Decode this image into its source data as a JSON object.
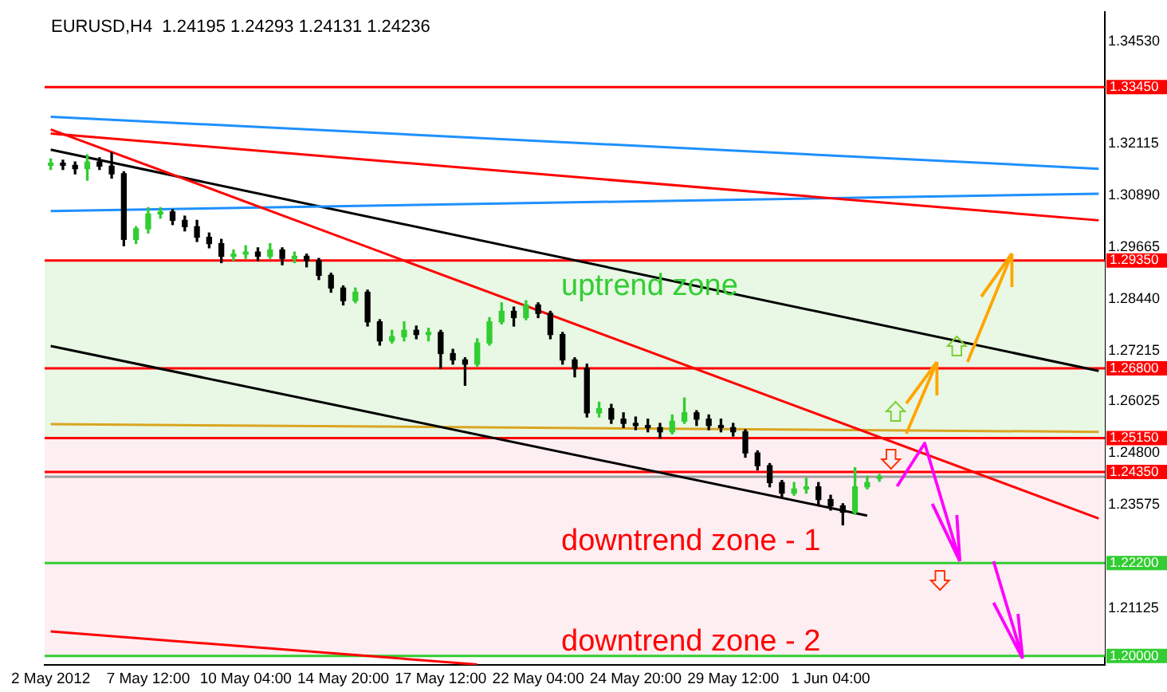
{
  "chart_data": {
    "type": "candlestick",
    "title": "EURUSD,H4  1.24195 1.24293 1.24131 1.24236",
    "categories": [
      "2 May 2012",
      null,
      null,
      null,
      null,
      null,
      null,
      null,
      "7 May 12:00",
      null,
      null,
      null,
      null,
      null,
      null,
      null,
      "10 May 04:00",
      null,
      null,
      null,
      null,
      null,
      null,
      null,
      "14 May 20:00",
      null,
      null,
      null,
      null,
      null,
      null,
      null,
      "17 May 12:00",
      null,
      null,
      null,
      null,
      null,
      null,
      null,
      "22 May 04:00",
      null,
      null,
      null,
      null,
      null,
      null,
      null,
      "24 May 20:00",
      null,
      null,
      null,
      null,
      null,
      null,
      null,
      "29 May 12:00",
      null,
      null,
      null,
      null,
      null,
      null,
      null,
      "1 Jun 04:00",
      null,
      null,
      null,
      null,
      null,
      null,
      null,
      null,
      null,
      null,
      null,
      null,
      null,
      null,
      null,
      null,
      null,
      null,
      null,
      null,
      null,
      null
    ],
    "ohlc": [
      [
        1.316,
        1.3175,
        1.315,
        1.3165
      ],
      [
        1.3165,
        1.3172,
        1.315,
        1.316
      ],
      [
        1.316,
        1.3168,
        1.314,
        1.3152
      ],
      [
        1.3152,
        1.3185,
        1.3125,
        1.3168
      ],
      [
        1.3168,
        1.3178,
        1.315,
        1.3158
      ],
      [
        1.3158,
        1.319,
        1.313,
        1.314
      ],
      [
        1.314,
        1.3145,
        1.297,
        1.2985
      ],
      [
        1.2985,
        1.3015,
        1.2975,
        1.301
      ],
      [
        1.301,
        1.306,
        1.3,
        1.3045
      ],
      [
        1.3045,
        1.306,
        1.3035,
        1.305
      ],
      [
        1.305,
        1.3055,
        1.302,
        1.303
      ],
      [
        1.303,
        1.304,
        1.3005,
        1.3015
      ],
      [
        1.3015,
        1.303,
        1.298,
        1.299
      ],
      [
        1.299,
        1.3,
        1.2965,
        1.2975
      ],
      [
        1.2975,
        1.2985,
        1.293,
        1.2945
      ],
      [
        1.2945,
        1.296,
        1.2935,
        1.295
      ],
      [
        1.295,
        1.297,
        1.294,
        1.2955
      ],
      [
        1.2955,
        1.2965,
        1.2935,
        1.2945
      ],
      [
        1.2945,
        1.2975,
        1.294,
        1.296
      ],
      [
        1.296,
        1.2965,
        1.2925,
        1.294
      ],
      [
        1.294,
        1.2955,
        1.293,
        1.2945
      ],
      [
        1.2945,
        1.295,
        1.292,
        1.2935
      ],
      [
        1.2935,
        1.294,
        1.289,
        1.29
      ],
      [
        1.29,
        1.2905,
        1.286,
        1.287
      ],
      [
        1.287,
        1.2875,
        1.283,
        1.284
      ],
      [
        1.284,
        1.287,
        1.2835,
        1.286
      ],
      [
        1.286,
        1.2865,
        1.278,
        1.279
      ],
      [
        1.279,
        1.2795,
        1.2735,
        1.2745
      ],
      [
        1.2745,
        1.277,
        1.274,
        1.2755
      ],
      [
        1.2755,
        1.279,
        1.2745,
        1.277
      ],
      [
        1.277,
        1.278,
        1.275,
        1.276
      ],
      [
        1.276,
        1.2775,
        1.2745,
        1.2765
      ],
      [
        1.2765,
        1.277,
        1.268,
        1.2715
      ],
      [
        1.2715,
        1.2725,
        1.269,
        1.27
      ],
      [
        1.27,
        1.2705,
        1.264,
        1.269
      ],
      [
        1.269,
        1.275,
        1.2685,
        1.274
      ],
      [
        1.274,
        1.28,
        1.2735,
        1.279
      ],
      [
        1.279,
        1.2835,
        1.2785,
        1.2815
      ],
      [
        1.2815,
        1.2825,
        1.278,
        1.28
      ],
      [
        1.28,
        1.284,
        1.2795,
        1.283
      ],
      [
        1.283,
        1.2835,
        1.28,
        1.281
      ],
      [
        1.281,
        1.2815,
        1.275,
        1.276
      ],
      [
        1.276,
        1.2765,
        1.269,
        1.27
      ],
      [
        1.27,
        1.2705,
        1.266,
        1.268
      ],
      [
        1.268,
        1.269,
        1.2565,
        1.2575
      ],
      [
        1.2575,
        1.26,
        1.2565,
        1.2585
      ],
      [
        1.2585,
        1.2595,
        1.255,
        1.256
      ],
      [
        1.256,
        1.2575,
        1.254,
        1.255
      ],
      [
        1.255,
        1.2565,
        1.2535,
        1.2545
      ],
      [
        1.2545,
        1.256,
        1.253,
        1.254
      ],
      [
        1.254,
        1.255,
        1.2515,
        1.253
      ],
      [
        1.253,
        1.257,
        1.2525,
        1.2555
      ],
      [
        1.2555,
        1.261,
        1.255,
        1.2575
      ],
      [
        1.2575,
        1.258,
        1.2545,
        1.256
      ],
      [
        1.256,
        1.257,
        1.2535,
        1.2545
      ],
      [
        1.2545,
        1.256,
        1.253,
        1.254
      ],
      [
        1.254,
        1.255,
        1.252,
        1.253
      ],
      [
        1.253,
        1.2535,
        1.247,
        1.248
      ],
      [
        1.248,
        1.2485,
        1.244,
        1.245
      ],
      [
        1.245,
        1.2455,
        1.24,
        1.241
      ],
      [
        1.241,
        1.2415,
        1.2375,
        1.2385
      ],
      [
        1.2385,
        1.241,
        1.238,
        1.2395
      ],
      [
        1.2395,
        1.242,
        1.2385,
        1.24
      ],
      [
        1.24,
        1.241,
        1.2355,
        1.237
      ],
      [
        1.237,
        1.238,
        1.2345,
        1.2355
      ],
      [
        1.2355,
        1.236,
        1.231,
        1.234
      ],
      [
        1.234,
        1.2445,
        1.2335,
        1.24
      ],
      [
        1.24,
        1.2425,
        1.2395,
        1.241
      ],
      [
        1.24195,
        1.24293,
        1.24131,
        1.24236
      ],
      null,
      null,
      null,
      null,
      null,
      null,
      null,
      null,
      null,
      null,
      null,
      null,
      null,
      null,
      null,
      null,
      null,
      null
    ],
    "series": [
      {
        "type": "line",
        "color": "#ff0000",
        "values": [
          1.3245,
          null,
          null,
          null,
          null,
          null,
          null,
          null,
          null,
          null,
          null,
          null,
          null,
          null,
          null,
          null,
          null,
          null,
          null,
          null,
          null,
          null,
          null,
          null,
          null,
          null,
          null,
          null,
          null,
          null,
          null,
          null,
          null,
          null,
          null,
          null,
          null,
          null,
          null,
          null,
          null,
          null,
          null,
          null,
          null,
          null,
          null,
          null,
          null,
          null,
          null,
          null,
          null,
          null,
          null,
          null,
          null,
          null,
          null,
          null,
          null,
          null,
          null,
          null,
          null,
          null,
          null,
          null,
          null,
          null,
          null,
          null,
          null,
          null,
          null,
          null,
          null,
          null,
          null,
          null,
          null,
          null,
          null,
          null,
          null,
          null,
          1.2325
        ]
      },
      {
        "type": "line",
        "color": "#ff0000",
        "values": [
          1.3235,
          null,
          null,
          null,
          null,
          null,
          null,
          null,
          null,
          null,
          null,
          null,
          null,
          null,
          null,
          null,
          null,
          null,
          null,
          null,
          null,
          null,
          null,
          null,
          null,
          null,
          null,
          null,
          null,
          null,
          null,
          null,
          null,
          null,
          null,
          null,
          null,
          null,
          null,
          null,
          null,
          null,
          null,
          null,
          null,
          null,
          null,
          null,
          null,
          null,
          null,
          null,
          null,
          null,
          null,
          null,
          null,
          null,
          null,
          null,
          null,
          null,
          null,
          null,
          null,
          null,
          null,
          null,
          null,
          null,
          null,
          null,
          null,
          null,
          null,
          null,
          null,
          null,
          null,
          null,
          null,
          null,
          null,
          null,
          null,
          null,
          1.303
        ]
      },
      {
        "type": "line",
        "color": "#1e90ff",
        "values": [
          1.3275,
          null,
          null,
          null,
          null,
          null,
          null,
          null,
          null,
          null,
          null,
          null,
          null,
          null,
          null,
          null,
          null,
          null,
          null,
          null,
          null,
          null,
          null,
          null,
          null,
          null,
          null,
          null,
          null,
          null,
          null,
          null,
          null,
          null,
          null,
          null,
          null,
          null,
          null,
          null,
          null,
          null,
          null,
          null,
          null,
          null,
          null,
          null,
          null,
          null,
          null,
          null,
          null,
          null,
          null,
          null,
          null,
          null,
          null,
          null,
          null,
          null,
          null,
          null,
          null,
          null,
          null,
          null,
          null,
          null,
          null,
          null,
          null,
          null,
          null,
          null,
          null,
          null,
          null,
          null,
          null,
          null,
          null,
          null,
          null,
          null,
          1.3152
        ]
      },
      {
        "type": "line",
        "color": "#1e90ff",
        "values": [
          1.3052,
          null,
          null,
          null,
          null,
          null,
          null,
          null,
          null,
          null,
          null,
          null,
          null,
          null,
          null,
          null,
          null,
          null,
          null,
          null,
          null,
          null,
          null,
          null,
          null,
          null,
          null,
          null,
          null,
          null,
          null,
          null,
          null,
          null,
          null,
          null,
          null,
          null,
          null,
          null,
          null,
          null,
          null,
          null,
          null,
          null,
          null,
          null,
          null,
          null,
          null,
          null,
          null,
          null,
          null,
          null,
          null,
          null,
          null,
          null,
          null,
          null,
          null,
          null,
          null,
          null,
          null,
          null,
          null,
          null,
          null,
          null,
          null,
          null,
          null,
          null,
          null,
          null,
          null,
          null,
          null,
          null,
          null,
          null,
          null,
          null,
          1.3093
        ]
      },
      {
        "type": "line",
        "color": "#000000",
        "values": [
          1.3197,
          null,
          null,
          null,
          null,
          null,
          null,
          null,
          null,
          null,
          null,
          null,
          null,
          null,
          null,
          null,
          null,
          null,
          null,
          null,
          null,
          null,
          null,
          null,
          null,
          null,
          null,
          null,
          null,
          null,
          null,
          null,
          null,
          null,
          null,
          null,
          null,
          null,
          null,
          null,
          null,
          null,
          null,
          null,
          null,
          null,
          null,
          null,
          null,
          null,
          null,
          null,
          null,
          null,
          null,
          null,
          null,
          null,
          null,
          null,
          null,
          null,
          null,
          null,
          null,
          null,
          null,
          null,
          null,
          null,
          null,
          null,
          null,
          null,
          null,
          null,
          null,
          null,
          null,
          null,
          null,
          null,
          null,
          null,
          null,
          null,
          1.2674
        ]
      },
      {
        "type": "line",
        "color": "#000000",
        "values": [
          1.2733,
          null,
          null,
          null,
          null,
          null,
          null,
          null,
          null,
          null,
          null,
          null,
          null,
          null,
          null,
          null,
          null,
          null,
          null,
          null,
          null,
          null,
          null,
          null,
          null,
          null,
          null,
          null,
          null,
          null,
          null,
          null,
          null,
          null,
          null,
          null,
          null,
          null,
          null,
          null,
          null,
          null,
          null,
          null,
          null,
          null,
          null,
          null,
          null,
          null,
          null,
          null,
          null,
          null,
          null,
          null,
          null,
          null,
          null,
          null,
          null,
          null,
          null,
          null,
          null,
          null,
          null,
          1.2332,
          null,
          null,
          null,
          null,
          null,
          null,
          null,
          null,
          null,
          null,
          null,
          null,
          null,
          null,
          null,
          null,
          null,
          null,
          null
        ]
      },
      {
        "type": "line",
        "color": "#daa520",
        "values": [
          1.2548,
          null,
          null,
          null,
          null,
          null,
          null,
          null,
          null,
          null,
          null,
          null,
          null,
          null,
          null,
          null,
          null,
          null,
          null,
          null,
          null,
          null,
          null,
          null,
          null,
          null,
          null,
          null,
          null,
          null,
          null,
          null,
          null,
          null,
          null,
          null,
          null,
          null,
          null,
          null,
          null,
          null,
          null,
          null,
          null,
          null,
          null,
          null,
          null,
          null,
          null,
          null,
          null,
          null,
          null,
          null,
          null,
          null,
          null,
          null,
          null,
          null,
          null,
          null,
          null,
          null,
          null,
          null,
          null,
          null,
          null,
          null,
          null,
          null,
          null,
          null,
          null,
          null,
          null,
          null,
          null,
          null,
          null,
          null,
          null,
          null,
          1.253
        ]
      },
      {
        "type": "line",
        "color": "#ff0000",
        "values": [
          1.2058,
          null,
          null,
          null,
          null,
          null,
          null,
          null,
          null,
          null,
          null,
          null,
          null,
          null,
          null,
          null,
          null,
          null,
          null,
          null,
          null,
          null,
          null,
          null,
          null,
          null,
          null,
          null,
          null,
          null,
          null,
          null,
          null,
          null,
          null,
          1.198,
          null,
          null,
          null,
          null,
          null,
          null,
          null,
          null,
          null,
          null,
          null,
          null,
          null,
          null,
          null,
          null,
          null,
          null,
          null,
          null,
          null,
          null,
          null,
          null,
          null,
          null,
          null,
          null,
          null,
          null,
          null,
          null,
          null,
          null,
          null,
          null,
          null,
          null,
          null,
          null,
          null,
          null,
          null,
          null,
          null,
          null,
          null,
          null,
          null,
          null,
          null
        ]
      }
    ],
    "ylim": [
      1.1979,
      1.3523
    ],
    "yticks": [
      {
        "value": 1.3453,
        "label": "1.34530"
      },
      {
        "value": 1.32115,
        "label": "1.32115"
      },
      {
        "value": 1.3089,
        "label": "1.30890"
      },
      {
        "value": 1.29665,
        "label": "1.29665"
      },
      {
        "value": 1.2844,
        "label": "1.28440"
      },
      {
        "value": 1.27215,
        "label": "1.27215"
      },
      {
        "value": 1.26025,
        "label": "1.26025"
      },
      {
        "value": 1.248,
        "label": "1.24800"
      },
      {
        "value": 1.23575,
        "label": "1.23575"
      },
      {
        "value": 1.21125,
        "label": "1.21125"
      }
    ],
    "ref_lines": [
      {
        "axis": "y",
        "value": 1.3345,
        "label": "1.33450",
        "color": "#ff0000"
      },
      {
        "axis": "y",
        "value": 1.2935,
        "label": "1.29350",
        "color": "#ff0000"
      },
      {
        "axis": "y",
        "value": 1.268,
        "label": "1.26800",
        "color": "#ff0000"
      },
      {
        "axis": "y",
        "value": 1.2515,
        "label": "1.25150",
        "color": "#ff0000"
      },
      {
        "axis": "y",
        "value": 1.2435,
        "label": "1.24350",
        "color": "#ff0000"
      },
      {
        "axis": "y",
        "value": 1.24236,
        "label": null,
        "color": "#a0a0a0"
      },
      {
        "axis": "y",
        "value": 1.222,
        "label": "1.22200",
        "color": "#32cd32"
      },
      {
        "axis": "y",
        "value": 1.2,
        "label": "1.20000",
        "color": "#32cd32"
      }
    ],
    "bands": [
      {
        "axis": "y",
        "from": 1.2515,
        "to": 1.2935,
        "label": null,
        "color": "#e8f8e4"
      },
      {
        "axis": "y",
        "from": 1.2,
        "to": 1.2515,
        "label": null,
        "color": "#fdeef2"
      }
    ],
    "annotations": [
      "uptrend zone",
      "downtrend zone - 1",
      "downtrend zone - 2"
    ]
  }
}
